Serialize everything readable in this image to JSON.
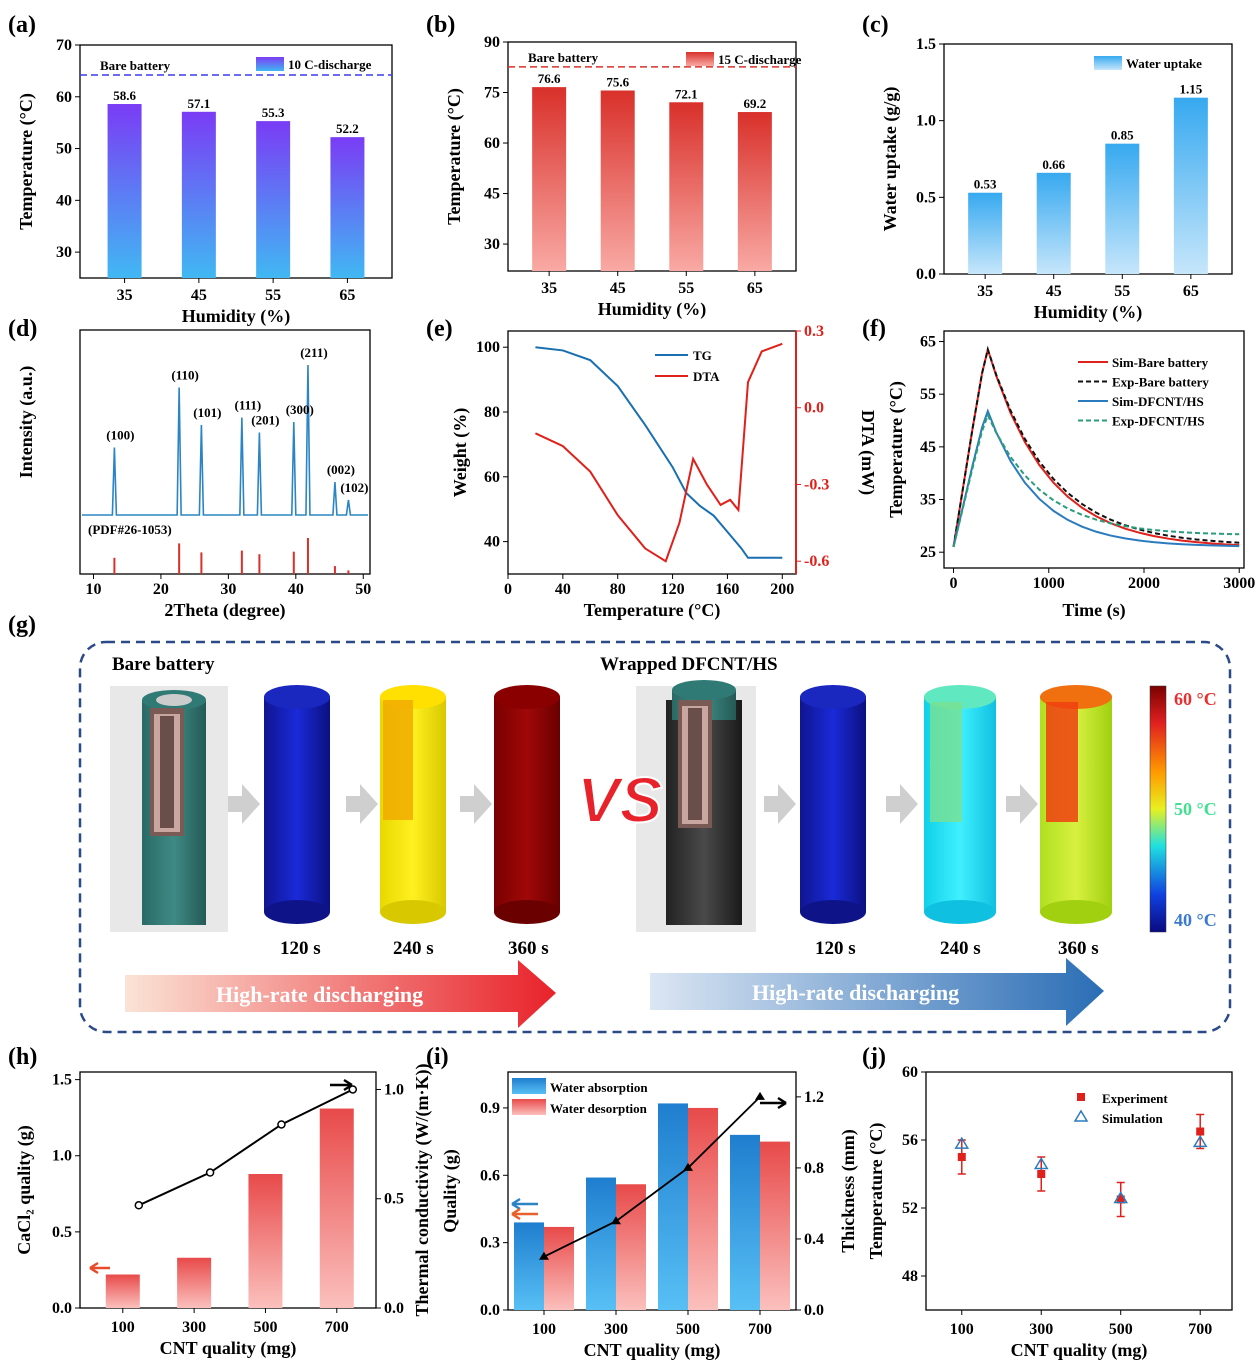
{
  "panels": [
    {
      "letter": "(a)",
      "type": "bar",
      "ylabel": "Temperature (°C)",
      "xlabel": "Humidity (%)",
      "categories": [
        "35",
        "45",
        "55",
        "65"
      ],
      "values": [
        58.6,
        57.1,
        55.3,
        52.2
      ],
      "labels": [
        "58.6",
        "57.1",
        "55.3",
        "52.2"
      ],
      "ylim": [
        25,
        70
      ],
      "yticks": [
        "30",
        "40",
        "50",
        "60",
        "70"
      ],
      "ref_label": "Bare battery",
      "ref_value": 64.2,
      "legend": "10 C-discharge",
      "colors": [
        "#7a3cf5",
        "#41b8f3"
      ],
      "ref_color": "#3a3af0"
    },
    {
      "letter": "(b)",
      "type": "bar",
      "ylabel": "Temperature (°C)",
      "xlabel": "Humidity (%)",
      "categories": [
        "35",
        "45",
        "55",
        "65"
      ],
      "values": [
        76.6,
        75.6,
        72.1,
        69.2
      ],
      "labels": [
        "76.6",
        "75.6",
        "72.1",
        "69.2"
      ],
      "ylim": [
        22,
        90
      ],
      "yticks": [
        "30",
        "45",
        "60",
        "75",
        "90"
      ],
      "ref_label": "Bare battery",
      "ref_value": 82.6,
      "legend": "15 C-discharge",
      "colors": [
        "#d9302a",
        "#f9a9a4"
      ],
      "ref_color": "#d9302a"
    },
    {
      "letter": "(c)",
      "type": "bar",
      "ylabel": "Water uptake (g/g)",
      "xlabel": "Humidity (%)",
      "categories": [
        "35",
        "45",
        "55",
        "65"
      ],
      "values": [
        0.53,
        0.66,
        0.85,
        1.15
      ],
      "labels": [
        "0.53",
        "0.66",
        "0.85",
        "1.15"
      ],
      "ylim": [
        0,
        1.5
      ],
      "yticks": [
        "0.0",
        "0.5",
        "1.0",
        "1.5"
      ],
      "legend": "Water uptake",
      "colors": [
        "#37a9f0",
        "#c6e6fb"
      ]
    },
    {
      "letter": "(d)",
      "type": "xrd",
      "ylabel": "Intensity (a.u.)",
      "xlabel": "2Theta (degree)",
      "xticks": [
        "10",
        "20",
        "30",
        "40",
        "50"
      ],
      "ref_text": "(PDF#26-1053)",
      "peaks": [
        [
          13.1,
          0.45,
          "(100)"
        ],
        [
          22.7,
          0.85,
          "(110)"
        ],
        [
          26.0,
          0.6,
          "(101)"
        ],
        [
          32.0,
          0.65,
          "(111)"
        ],
        [
          34.6,
          0.55,
          "(201)"
        ],
        [
          39.7,
          0.62,
          "(300)"
        ],
        [
          41.8,
          1.0,
          "(211)"
        ],
        [
          45.8,
          0.22,
          "(002)"
        ],
        [
          47.8,
          0.1,
          "(102)"
        ]
      ]
    },
    {
      "letter": "(e)",
      "type": "line",
      "ylabel": "Weight (%)",
      "y2label": "DTA (mW)",
      "xlabel": "Temperature (°C)",
      "xticks": [
        "0",
        "40",
        "80",
        "120",
        "160",
        "200"
      ],
      "yticks": [
        "40",
        "60",
        "80",
        "100"
      ],
      "y2ticks": [
        "-0.6",
        "-0.3",
        "0.0",
        "0.3"
      ],
      "legend": [
        "TG",
        "DTA"
      ],
      "colors": [
        "#1a6fb0",
        "#e0201a"
      ]
    },
    {
      "letter": "(f)",
      "type": "line",
      "ylabel": "Temperature (°C)",
      "xlabel": "Time (s)",
      "xticks": [
        "0",
        "1000",
        "2000",
        "3000"
      ],
      "yticks": [
        "25",
        "35",
        "45",
        "55",
        "65"
      ],
      "legend": [
        "Sim-Bare battery",
        "Exp-Bare battery",
        "Sim-DFCNT/HS",
        "Exp-DFCNT/HS"
      ],
      "colors": [
        "#e0201a",
        "#111111",
        "#2b7bbf",
        "#2a9d7a"
      ]
    },
    {
      "letter": "(h)",
      "type": "bar-line",
      "ylabel": "CaCl₂ quality (g)",
      "y2label": "Thermal conductivity (W/(m·K))",
      "xlabel": "CNT quality (mg)",
      "categories": [
        "100",
        "300",
        "500",
        "700"
      ],
      "values": [
        0.22,
        0.33,
        0.88,
        1.31
      ],
      "line": [
        0.47,
        0.62,
        0.84,
        1.0
      ],
      "yticks": [
        "0.0",
        "0.5",
        "1.0",
        "1.5"
      ],
      "y2ticks": [
        "0.0",
        "0.5",
        "1.0"
      ],
      "colors": [
        "#e84a4a",
        "#fbc0bd"
      ]
    },
    {
      "letter": "(i)",
      "type": "bar-line",
      "ylabel": "Quality (g)",
      "y2label": "Thickness (mm)",
      "xlabel": "CNT quality (mg)",
      "categories": [
        "100",
        "300",
        "500",
        "700"
      ],
      "absorption": [
        0.39,
        0.59,
        0.92,
        0.78
      ],
      "desorption": [
        0.37,
        0.56,
        0.9,
        0.75
      ],
      "line": [
        0.3,
        0.5,
        0.8,
        1.2
      ],
      "yticks": [
        "0.0",
        "0.3",
        "0.6",
        "0.9"
      ],
      "y2ticks": [
        "0.0",
        "0.4",
        "0.8",
        "1.2"
      ],
      "legend": [
        "Water absorption",
        "Water desorption"
      ],
      "colors": [
        "#1f7ecf",
        "#e84a4a"
      ]
    },
    {
      "letter": "(j)",
      "type": "scatter",
      "ylabel": "Temperature (°C)",
      "xlabel": "CNT quality (mg)",
      "categories": [
        "100",
        "300",
        "500",
        "700"
      ],
      "experiment": [
        55.0,
        54.0,
        52.5,
        56.5
      ],
      "error": [
        1.0,
        1.0,
        1.0,
        1.0
      ],
      "simulation": [
        55.7,
        54.5,
        52.5,
        55.8
      ],
      "yticks": [
        "48",
        "52",
        "56",
        "60"
      ],
      "legend": [
        "Experiment",
        "Simulation"
      ],
      "colors": [
        "#e0201a",
        "#2b7bbf"
      ]
    }
  ],
  "g": {
    "letter": "(g)",
    "left_title": "Bare battery",
    "right_title": "Wrapped DFCNT/HS",
    "times": [
      "120 s",
      "240 s",
      "360 s"
    ],
    "vs": "VS",
    "arrow_text": "High-rate discharging",
    "scale": [
      "60 °C",
      "50 °C",
      "40 °C"
    ]
  },
  "chart_data": [
    {
      "type": "bar",
      "title": "(a)",
      "categories": [
        "35",
        "45",
        "55",
        "65"
      ],
      "values": [
        58.6,
        57.1,
        55.3,
        52.2
      ],
      "xlabel": "Humidity (%)",
      "ylabel": "Temperature (°C)",
      "ylim": [
        25,
        70
      ],
      "series": [
        {
          "name": "10 C-discharge",
          "values": [
            58.6,
            57.1,
            55.3,
            52.2
          ]
        }
      ]
    },
    {
      "type": "bar",
      "title": "(b)",
      "categories": [
        "35",
        "45",
        "55",
        "65"
      ],
      "values": [
        76.6,
        75.6,
        72.1,
        69.2
      ],
      "xlabel": "Humidity (%)",
      "ylabel": "Temperature (°C)",
      "ylim": [
        22,
        90
      ],
      "series": [
        {
          "name": "15 C-discharge",
          "values": [
            76.6,
            75.6,
            72.1,
            69.2
          ]
        }
      ]
    },
    {
      "type": "bar",
      "title": "(c)",
      "categories": [
        "35",
        "45",
        "55",
        "65"
      ],
      "values": [
        0.53,
        0.66,
        0.85,
        1.15
      ],
      "xlabel": "Humidity (%)",
      "ylabel": "Water uptake (g/g)",
      "ylim": [
        0,
        1.5
      ],
      "series": [
        {
          "name": "Water uptake",
          "values": [
            0.53,
            0.66,
            0.85,
            1.15
          ]
        }
      ]
    },
    {
      "type": "line",
      "title": "(d)",
      "xlabel": "2Theta (degree)",
      "ylabel": "Intensity (a.u.)",
      "x": [
        13.1,
        22.7,
        26.0,
        32.0,
        34.6,
        39.7,
        41.8,
        45.8,
        47.8
      ]
    },
    {
      "type": "line",
      "title": "(e)",
      "xlabel": "Temperature (°C)",
      "ylabel": "Weight (%)",
      "series": [
        {
          "name": "TG"
        },
        {
          "name": "DTA"
        }
      ]
    },
    {
      "type": "line",
      "title": "(f)",
      "xlabel": "Time (s)",
      "ylabel": "Temperature (°C)",
      "series": [
        {
          "name": "Sim-Bare battery"
        },
        {
          "name": "Exp-Bare battery"
        },
        {
          "name": "Sim-DFCNT/HS"
        },
        {
          "name": "Exp-DFCNT/HS"
        }
      ]
    },
    {
      "type": "bar",
      "title": "(h)",
      "categories": [
        "100",
        "300",
        "500",
        "700"
      ],
      "values": [
        0.22,
        0.33,
        0.88,
        1.31
      ],
      "xlabel": "CNT quality (mg)",
      "ylabel": "CaCl₂ quality (g)"
    },
    {
      "type": "bar",
      "title": "(i)",
      "categories": [
        "100",
        "300",
        "500",
        "700"
      ],
      "series": [
        {
          "name": "Water absorption",
          "values": [
            0.39,
            0.59,
            0.92,
            0.78
          ]
        },
        {
          "name": "Water desorption",
          "values": [
            0.37,
            0.56,
            0.9,
            0.75
          ]
        }
      ],
      "xlabel": "CNT quality (mg)",
      "ylabel": "Quality (g)"
    },
    {
      "type": "scatter",
      "title": "(j)",
      "categories": [
        "100",
        "300",
        "500",
        "700"
      ],
      "series": [
        {
          "name": "Experiment",
          "values": [
            55.0,
            54.0,
            52.5,
            56.5
          ]
        },
        {
          "name": "Simulation",
          "values": [
            55.7,
            54.5,
            52.5,
            55.8
          ]
        }
      ],
      "xlabel": "CNT quality (mg)",
      "ylabel": "Temperature (°C)"
    }
  ]
}
